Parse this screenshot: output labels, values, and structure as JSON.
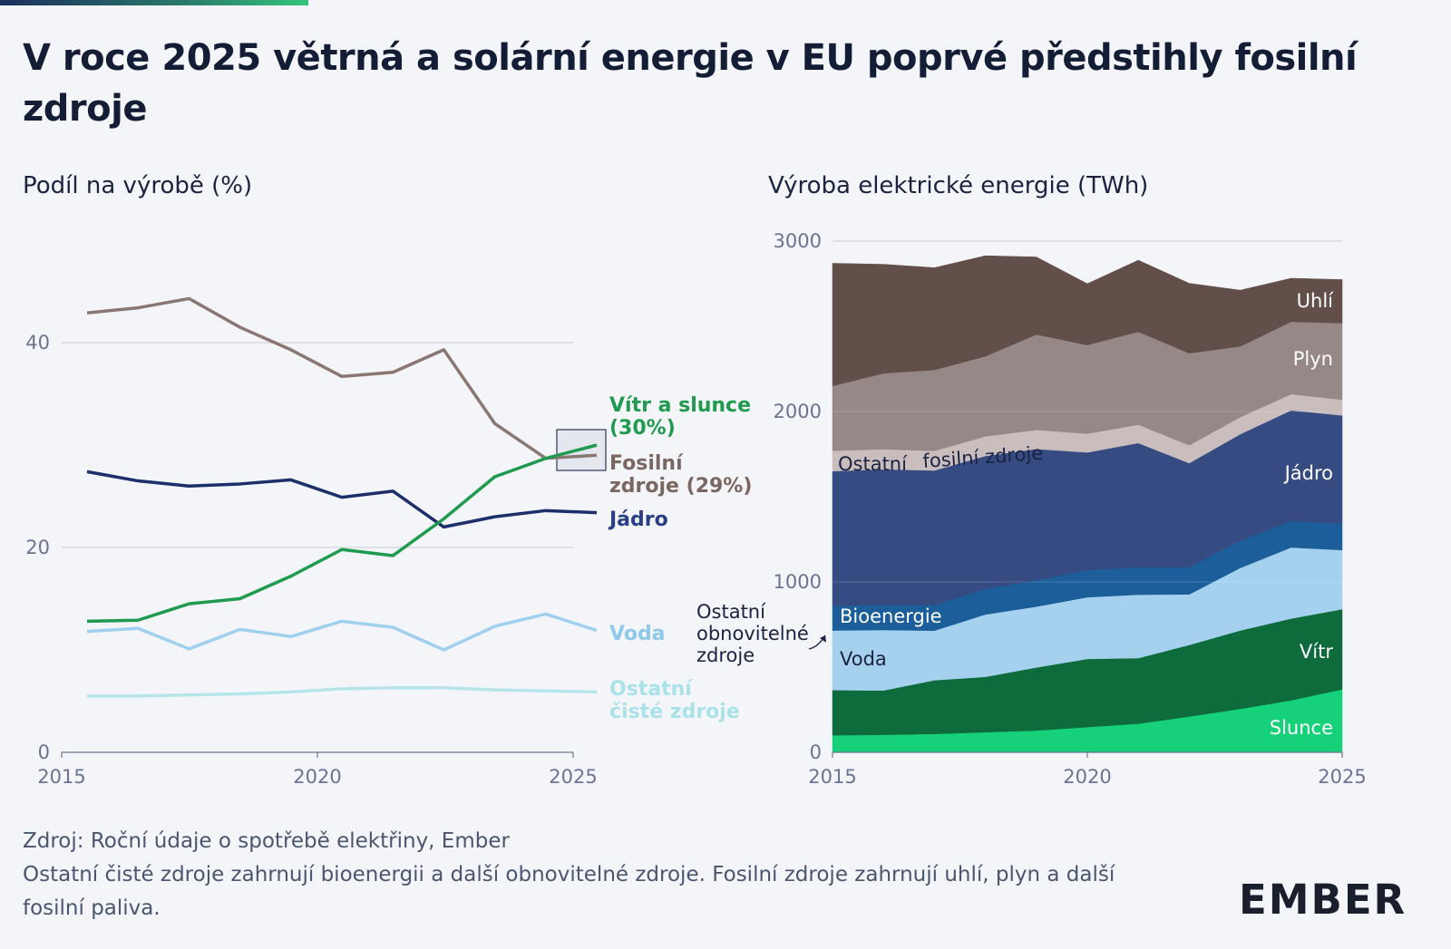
{
  "title": "V roce 2025 větrná a solární energie v EU poprvé předstihly fosilní zdroje",
  "left_subtitle": "Podíl na výrobě (%)",
  "right_subtitle": "Výroba elektrické energie (TWh)",
  "source": "Zdroj: Roční údaje o spotřebě elektřiny, Ember",
  "note": "Ostatní čisté zdroje zahrnují bioenergii a další obnovitelné zdroje. Fosilní zdroje zahrnují uhlí, plyn a další fosilní paliva.",
  "logo": "EMBER",
  "colors": {
    "wind_solar": "#1f9a4e",
    "fossil": "#8b7772",
    "nuclear": "#1d2f6b",
    "hydro": "#9fd0ee",
    "other_clean": "#b5e5ea",
    "solar": "#17d17a",
    "wind": "#0d6b3c",
    "hydro_area": "#a5d1ee",
    "bioenergy": "#1b5e9a",
    "nuclear_area": "#354b82",
    "other_fossil": "#c9bdbd",
    "gas": "#968886",
    "coal": "#624f4a"
  },
  "chart_data": [
    {
      "type": "line",
      "title": "Podíl na výrobě (%)",
      "x": [
        2015,
        2016,
        2017,
        2018,
        2019,
        2020,
        2021,
        2022,
        2023,
        2024,
        2025
      ],
      "xticks": [
        "2015",
        "2020",
        "2025"
      ],
      "yticks": [
        "0",
        "20",
        "40"
      ],
      "ylim": [
        0,
        45
      ],
      "series": [
        {
          "key": "wind_solar",
          "name": "Vítr a slunce",
          "label_value": "(30%)",
          "values": [
            12.8,
            12.9,
            14.5,
            15.0,
            17.2,
            19.8,
            19.2,
            22.8,
            26.9,
            28.7,
            30.0
          ]
        },
        {
          "key": "fossil",
          "name": "Fosilní zdroje",
          "label_value": "(29%)",
          "values": [
            42.9,
            43.4,
            44.3,
            41.5,
            39.3,
            36.7,
            37.1,
            39.3,
            32.1,
            28.7,
            29.0
          ]
        },
        {
          "key": "nuclear",
          "name": "Jádro",
          "values": [
            27.4,
            26.5,
            26.0,
            26.2,
            26.6,
            24.9,
            25.5,
            22.0,
            23.0,
            23.6,
            23.4
          ]
        },
        {
          "key": "hydro",
          "name": "Voda",
          "values": [
            11.8,
            12.1,
            10.1,
            12.0,
            11.3,
            12.8,
            12.2,
            10.0,
            12.3,
            13.5,
            11.9
          ]
        },
        {
          "key": "other_clean",
          "name": "Ostatní čisté zdroje",
          "values": [
            5.5,
            5.5,
            5.6,
            5.7,
            5.9,
            6.2,
            6.3,
            6.3,
            6.1,
            6.0,
            5.9
          ]
        }
      ]
    },
    {
      "type": "area",
      "title": "Výroba elektrické energie (TWh)",
      "x": [
        2015,
        2016,
        2017,
        2018,
        2019,
        2020,
        2021,
        2022,
        2023,
        2024,
        2025
      ],
      "xticks": [
        "2015",
        "2020",
        "2025"
      ],
      "yticks": [
        "0",
        "1000",
        "2000",
        "3000"
      ],
      "ylim": [
        0,
        3000
      ],
      "stack_order": [
        "solar",
        "wind",
        "hydro_area",
        "other_renewable",
        "bioenergy",
        "nuclear_area",
        "other_fossil",
        "gas",
        "coal"
      ],
      "series": [
        {
          "key": "solar",
          "name": "Slunce",
          "values": [
            100,
            103,
            108,
            118,
            128,
            148,
            168,
            210,
            255,
            305,
            370
          ]
        },
        {
          "key": "wind",
          "name": "Vítr",
          "values": [
            265,
            260,
            315,
            325,
            370,
            400,
            385,
            420,
            460,
            480,
            470
          ]
        },
        {
          "key": "hydro_area",
          "name": "Voda",
          "values": [
            340,
            345,
            280,
            355,
            345,
            350,
            360,
            285,
            355,
            405,
            335
          ]
        },
        {
          "key": "other_renewable",
          "name": "Ostatní obnovitelné zdroje",
          "values": [
            10,
            10,
            11,
            11,
            12,
            12,
            12,
            12,
            12,
            12,
            12
          ]
        },
        {
          "key": "bioenergy",
          "name": "Bioenergie",
          "values": [
            145,
            148,
            150,
            150,
            155,
            160,
            160,
            160,
            160,
            155,
            155
          ]
        },
        {
          "key": "nuclear_area",
          "name": "Jádro",
          "values": [
            790,
            795,
            790,
            780,
            770,
            690,
            730,
            610,
            625,
            650,
            635
          ]
        },
        {
          "key": "other_fossil",
          "name": "Ostatní fosilní zdroje",
          "values": [
            120,
            118,
            115,
            115,
            112,
            110,
            108,
            105,
            100,
            95,
            92
          ]
        },
        {
          "key": "gas",
          "name": "Plyn",
          "values": [
            380,
            445,
            475,
            470,
            560,
            520,
            545,
            540,
            415,
            425,
            450
          ]
        },
        {
          "key": "coal",
          "name": "Uhlí",
          "values": [
            720,
            640,
            600,
            590,
            455,
            360,
            420,
            410,
            330,
            255,
            255
          ]
        }
      ]
    }
  ]
}
